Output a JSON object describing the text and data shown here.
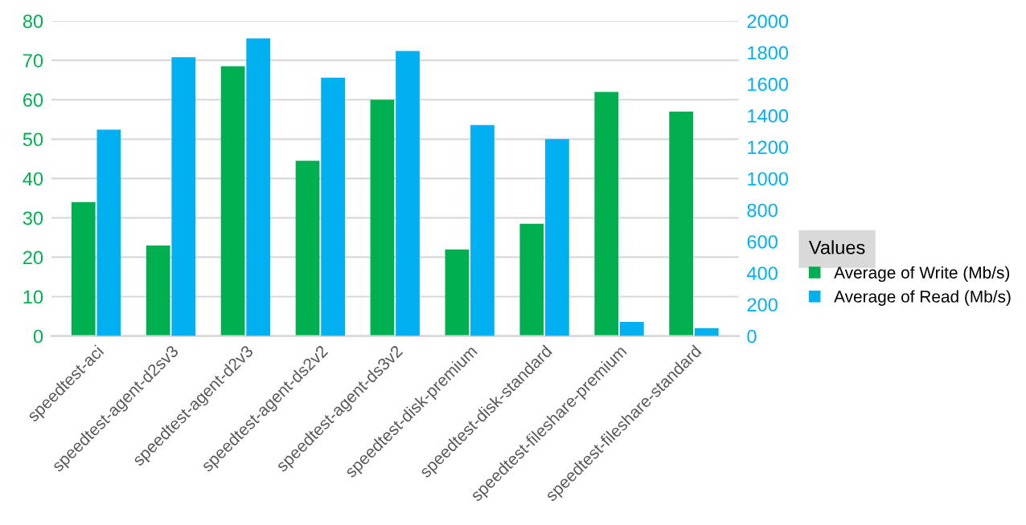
{
  "chart_data": {
    "type": "bar",
    "categories": [
      "speedtest-aci",
      "speedtest-agent-d2sv3",
      "speedtest-agent-d2v3",
      "speedtest-agent-ds2v2",
      "speedtest-agent-ds3v2",
      "speedtest-disk-premium",
      "speedtest-disk-standard",
      "speedtest-fileshare-premium",
      "speedtest-fileshare-standard"
    ],
    "series": [
      {
        "name": "Average of Write (Mb/s)",
        "color": "#00b050",
        "values": [
          34,
          23,
          68.5,
          44.5,
          60,
          22,
          28.5,
          62,
          57
        ]
      },
      {
        "name": "Average of Read (Mb/s)",
        "color": "#00b0f0",
        "axis": "y2",
        "values": [
          1310,
          1770,
          1890,
          1640,
          1810,
          1340,
          1250,
          90,
          50
        ]
      }
    ],
    "ylim": [
      0,
      80
    ],
    "yticks": [
      0,
      10,
      20,
      30,
      40,
      50,
      60,
      70,
      80
    ],
    "y2lim": [
      0,
      2000
    ],
    "y2ticks": [
      0,
      200,
      400,
      600,
      800,
      1000,
      1200,
      1400,
      1600,
      1800,
      2000
    ],
    "legend_title": "Values",
    "legend": "right",
    "grid": "y"
  }
}
